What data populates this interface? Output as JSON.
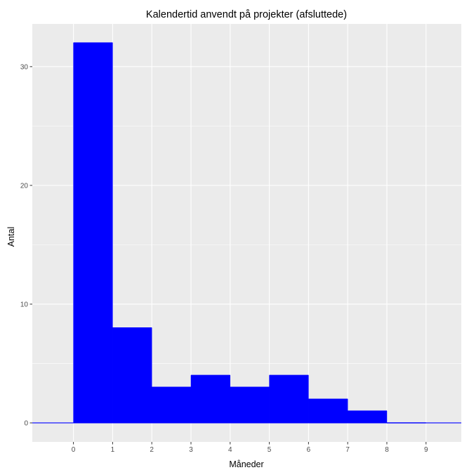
{
  "chart_data": {
    "type": "histogram",
    "title": "Kalendertid anvendt på projekter (afsluttede)",
    "xlabel": "Måneder",
    "ylabel": "Antal",
    "x_ticks": [
      "0",
      "1",
      "2",
      "3",
      "4",
      "5",
      "6",
      "7",
      "8",
      "9"
    ],
    "y_ticks": [
      "0",
      "10",
      "20",
      "30"
    ],
    "xlim": [
      -1.05,
      9.9
    ],
    "ylim": [
      -1.6,
      33.6
    ],
    "bins": [
      {
        "start": 0,
        "end": 1,
        "count": 32
      },
      {
        "start": 1,
        "end": 2,
        "count": 8
      },
      {
        "start": 2,
        "end": 3,
        "count": 3
      },
      {
        "start": 3,
        "end": 4,
        "count": 4
      },
      {
        "start": 4,
        "end": 5,
        "count": 3
      },
      {
        "start": 5,
        "end": 6,
        "count": 4
      },
      {
        "start": 6,
        "end": 7,
        "count": 2
      },
      {
        "start": 7,
        "end": 8,
        "count": 1
      },
      {
        "start": 8,
        "end": 9,
        "count": 0
      }
    ],
    "bar_color": "#0000ff",
    "panel_background": "#ebebeb",
    "grid_color": "#ffffff",
    "tick_color": "#333333",
    "grid": true,
    "legend": "none"
  }
}
